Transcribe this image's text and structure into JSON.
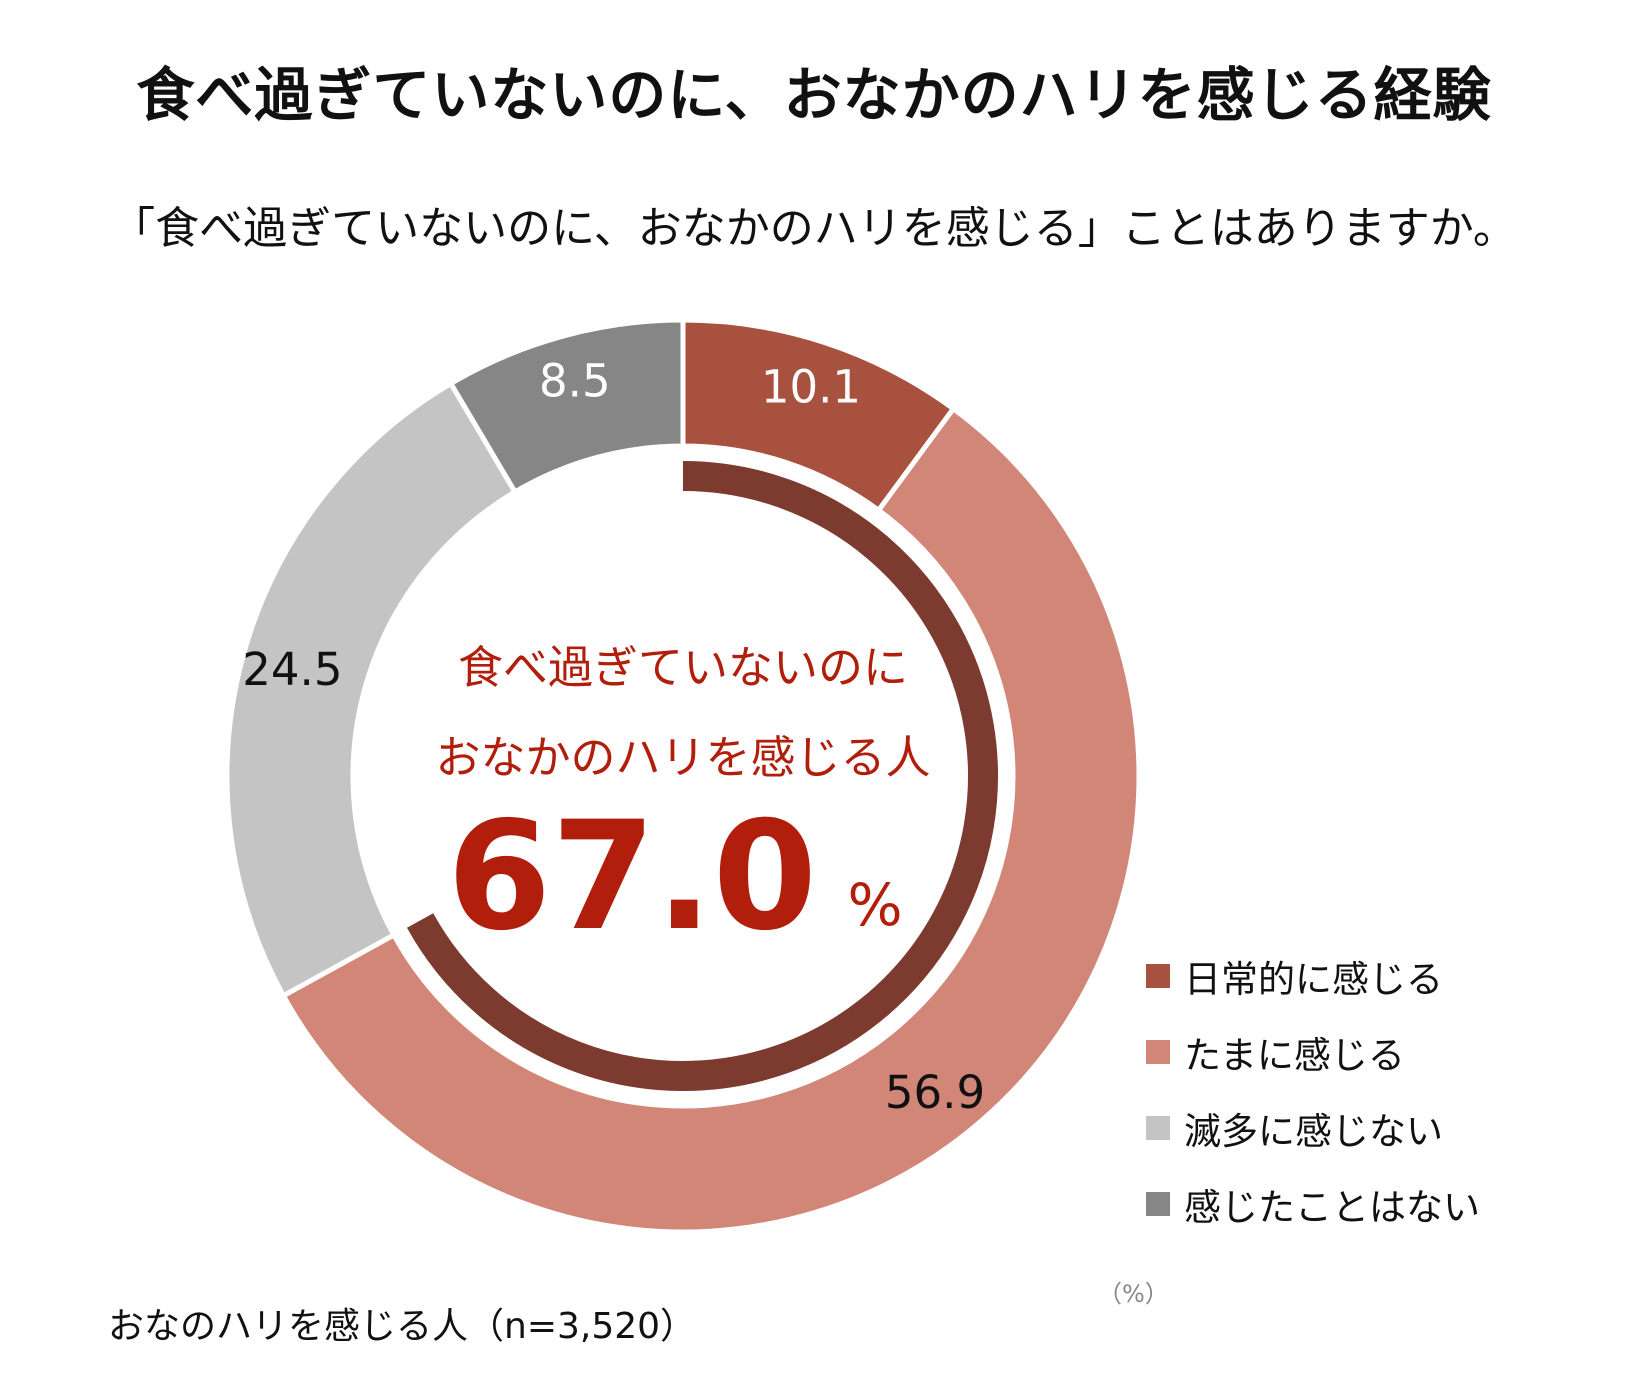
{
  "title": "食べ過ぎていないのに、おなかのハリを感じる経験",
  "subtitle": "「食べ過ぎていないのに、おなかのハリを感じる」ことはありますか。",
  "center": {
    "line1": "食べ過ぎていないのに",
    "line2": "おなかのハリを感じる人",
    "value": "67.0",
    "unit": "%",
    "color": "#b21e0c"
  },
  "unit_label": "（%）",
  "note": "おなのハリを感じる人（n=3,520）",
  "inner_ring_color": "#7d3a2f",
  "chart_data": {
    "type": "pie",
    "variant": "donut",
    "start_angle": "12 o'clock, clockwise",
    "slices": [
      {
        "label": "日常的に感じる",
        "value": 10.1,
        "display": "10.1",
        "color": "#a9513f",
        "text_color": "#ffffff"
      },
      {
        "label": "たまに感じる",
        "value": 56.9,
        "display": "56.9",
        "color": "#d18677",
        "text_color": "#111111"
      },
      {
        "label": "滅多に感じない",
        "value": 24.5,
        "display": "24.5",
        "color": "#c4c4c4",
        "text_color": "#111111"
      },
      {
        "label": "感じたことはない",
        "value": 8.5,
        "display": "8.5",
        "color": "#868686",
        "text_color": "#ffffff"
      }
    ],
    "inner_arc": {
      "label": "食べ過ぎていないのにおなかのハリを感じる人",
      "value": 67.0
    }
  }
}
